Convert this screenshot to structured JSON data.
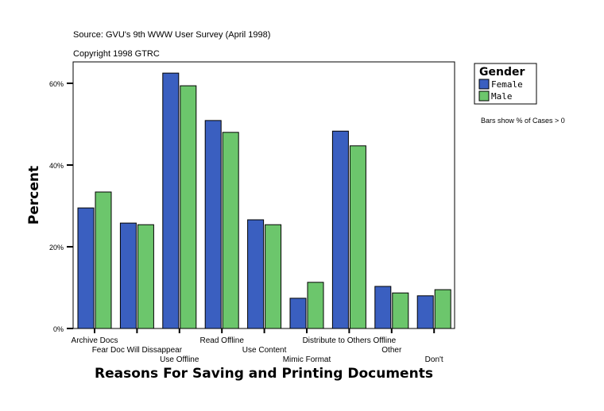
{
  "chart_data": {
    "type": "bar",
    "title": "Source: GVU's 9th WWW User Survey (April 1998)",
    "subtitle": "Copyright 1998 GTRC",
    "xlabel": "Reasons For Saving and Printing Documents",
    "ylabel": "Percent",
    "ylim": [
      0,
      65
    ],
    "yticks": [
      0,
      20,
      40,
      60
    ],
    "ytick_labels": [
      "0%",
      "20%",
      "40%",
      "60%"
    ],
    "grid": false,
    "categories": [
      "Archive Docs",
      "Fear Doc Will Dissappear",
      "Use Offline",
      "Read Offline",
      "Use Content",
      "Mimic Format",
      "Distribute to Others Offline",
      "Other",
      "Don't"
    ],
    "series": [
      {
        "name": "Female",
        "color": "#3a5fc0",
        "values": [
          29.5,
          25.8,
          62.5,
          50.9,
          26.6,
          7.4,
          48.3,
          10.3,
          8.0
        ]
      },
      {
        "name": "Male",
        "color": "#6cc66c",
        "values": [
          33.4,
          25.4,
          59.4,
          48.0,
          25.4,
          11.3,
          44.7,
          8.7,
          9.5
        ]
      }
    ],
    "legend": {
      "title": "Gender",
      "placement": "top-right"
    },
    "note": "Bars show % of Cases > 0"
  }
}
